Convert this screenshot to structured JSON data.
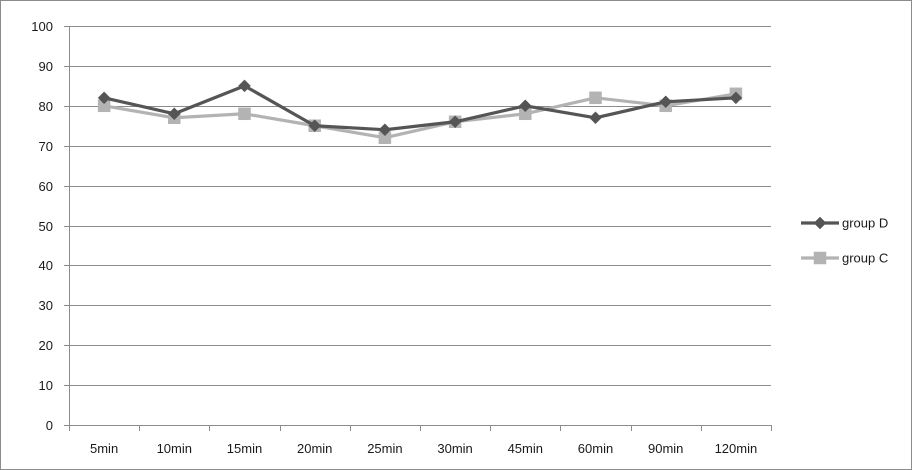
{
  "chart_data": {
    "type": "line",
    "title": "",
    "xlabel": "",
    "ylabel": "",
    "categories": [
      "5min",
      "10min",
      "15min",
      "20min",
      "25min",
      "30min",
      "45min",
      "60min",
      "90min",
      "120min"
    ],
    "ylim": [
      0,
      100
    ],
    "yticks": [
      0,
      10,
      20,
      30,
      40,
      50,
      60,
      70,
      80,
      90,
      100
    ],
    "ytick_labels": [
      "0",
      "10",
      "20",
      "30",
      "40",
      "50",
      "60",
      "70",
      "80",
      "90",
      "100"
    ],
    "grid": true,
    "legend_position": "right",
    "series": [
      {
        "name": "group D",
        "marker": "diamond",
        "color": "#555555",
        "values": [
          82,
          78,
          85,
          75,
          74,
          76,
          80,
          77,
          81,
          82
        ]
      },
      {
        "name": "group C",
        "marker": "square",
        "color": "#b3b3b3",
        "values": [
          80,
          77,
          78,
          75,
          72,
          76,
          78,
          82,
          80,
          83
        ]
      }
    ]
  }
}
